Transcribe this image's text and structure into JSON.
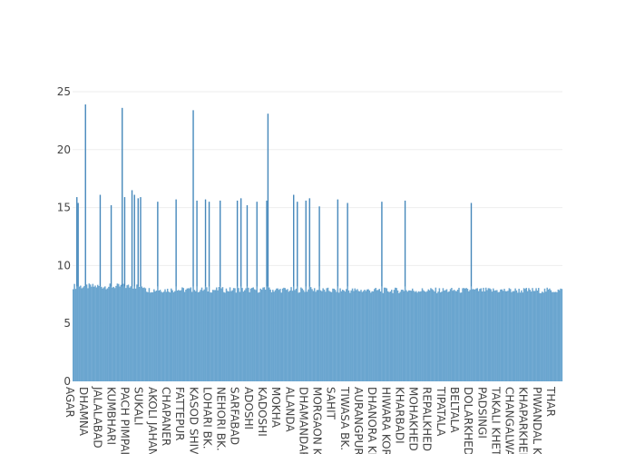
{
  "chart_data": {
    "type": "bar",
    "title": "",
    "xlabel": "",
    "ylabel": "",
    "ylim": [
      0,
      25
    ],
    "yticks": [
      0,
      5,
      10,
      15,
      20,
      25
    ],
    "grid": true,
    "bar_color": "#6aa5cf",
    "bar_outline_color": "#3d7eb3",
    "category_count": 400,
    "baseline_value": 7.9,
    "visible_category_labels": [
      "AGAR",
      "DHAMNA",
      "JALALABAD",
      "KUMBHARI",
      "PACH PIMPAL",
      "SUKALI",
      "AKOLI JAHAN",
      "CHAPANER",
      "FATTEPUR",
      "KASOD SHIVF",
      "LOHARI BK.",
      "NEHORI BK.",
      "SARFABAD",
      "ADOSHI",
      "KADOSHI",
      "MOKHA",
      "ALANDA",
      "DHAMANDARI",
      "MORGAON K",
      "SAHIT",
      "TIWASA BK.",
      "AURANGPUR",
      "DHANORA KH",
      "HIWARA KOR",
      "KHARBADI",
      "MOHAKHED",
      "REPALKHED",
      "TIPATALA",
      "BELTALA",
      "DOLARKHED",
      "PADSINGI",
      "TAKALI KHET",
      "CHANGALWA",
      "KHAPARKHED",
      "PIWANDAL KH",
      "THAR"
    ],
    "spikes": [
      {
        "index": 3,
        "value": 15.9
      },
      {
        "index": 4,
        "value": 15.4
      },
      {
        "index": 10,
        "value": 23.9
      },
      {
        "index": 22,
        "value": 16.1
      },
      {
        "index": 31,
        "value": 15.2
      },
      {
        "index": 40,
        "value": 23.6
      },
      {
        "index": 42,
        "value": 15.9
      },
      {
        "index": 48,
        "value": 16.5
      },
      {
        "index": 50,
        "value": 16.1
      },
      {
        "index": 53,
        "value": 15.8
      },
      {
        "index": 55,
        "value": 15.9
      },
      {
        "index": 69,
        "value": 15.5
      },
      {
        "index": 84,
        "value": 15.7
      },
      {
        "index": 98,
        "value": 23.4
      },
      {
        "index": 101,
        "value": 15.6
      },
      {
        "index": 108,
        "value": 15.7
      },
      {
        "index": 111,
        "value": 15.5
      },
      {
        "index": 120,
        "value": 15.6
      },
      {
        "index": 134,
        "value": 15.6
      },
      {
        "index": 137,
        "value": 15.8
      },
      {
        "index": 142,
        "value": 15.2
      },
      {
        "index": 150,
        "value": 15.5
      },
      {
        "index": 158,
        "value": 15.6
      },
      {
        "index": 159,
        "value": 23.1
      },
      {
        "index": 180,
        "value": 16.1
      },
      {
        "index": 183,
        "value": 15.5
      },
      {
        "index": 190,
        "value": 15.6
      },
      {
        "index": 193,
        "value": 15.8
      },
      {
        "index": 201,
        "value": 15.1
      },
      {
        "index": 216,
        "value": 15.7
      },
      {
        "index": 224,
        "value": 15.4
      },
      {
        "index": 252,
        "value": 15.5
      },
      {
        "index": 271,
        "value": 15.6
      },
      {
        "index": 325,
        "value": 15.4
      }
    ]
  }
}
